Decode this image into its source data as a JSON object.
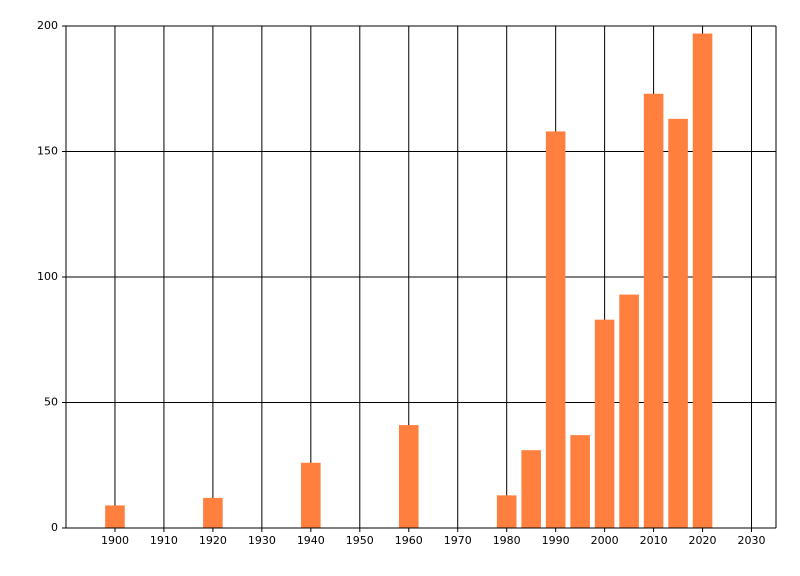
{
  "chart_data": {
    "type": "bar",
    "x": [
      1900,
      1920,
      1940,
      1960,
      1980,
      1985,
      1990,
      1995,
      2000,
      2005,
      2010,
      2015,
      2020
    ],
    "values": [
      9,
      12,
      26,
      41,
      13,
      31,
      158,
      37,
      83,
      93,
      173,
      163,
      197
    ],
    "color": "#ff7f3f",
    "xlim": [
      1890,
      2035
    ],
    "xticks": [
      1900,
      1910,
      1920,
      1930,
      1940,
      1950,
      1960,
      1970,
      1980,
      1990,
      2000,
      2010,
      2020,
      2030
    ],
    "ylim": [
      0,
      200
    ],
    "yticks": [
      0,
      50,
      100,
      150,
      200
    ],
    "grid": true
  }
}
